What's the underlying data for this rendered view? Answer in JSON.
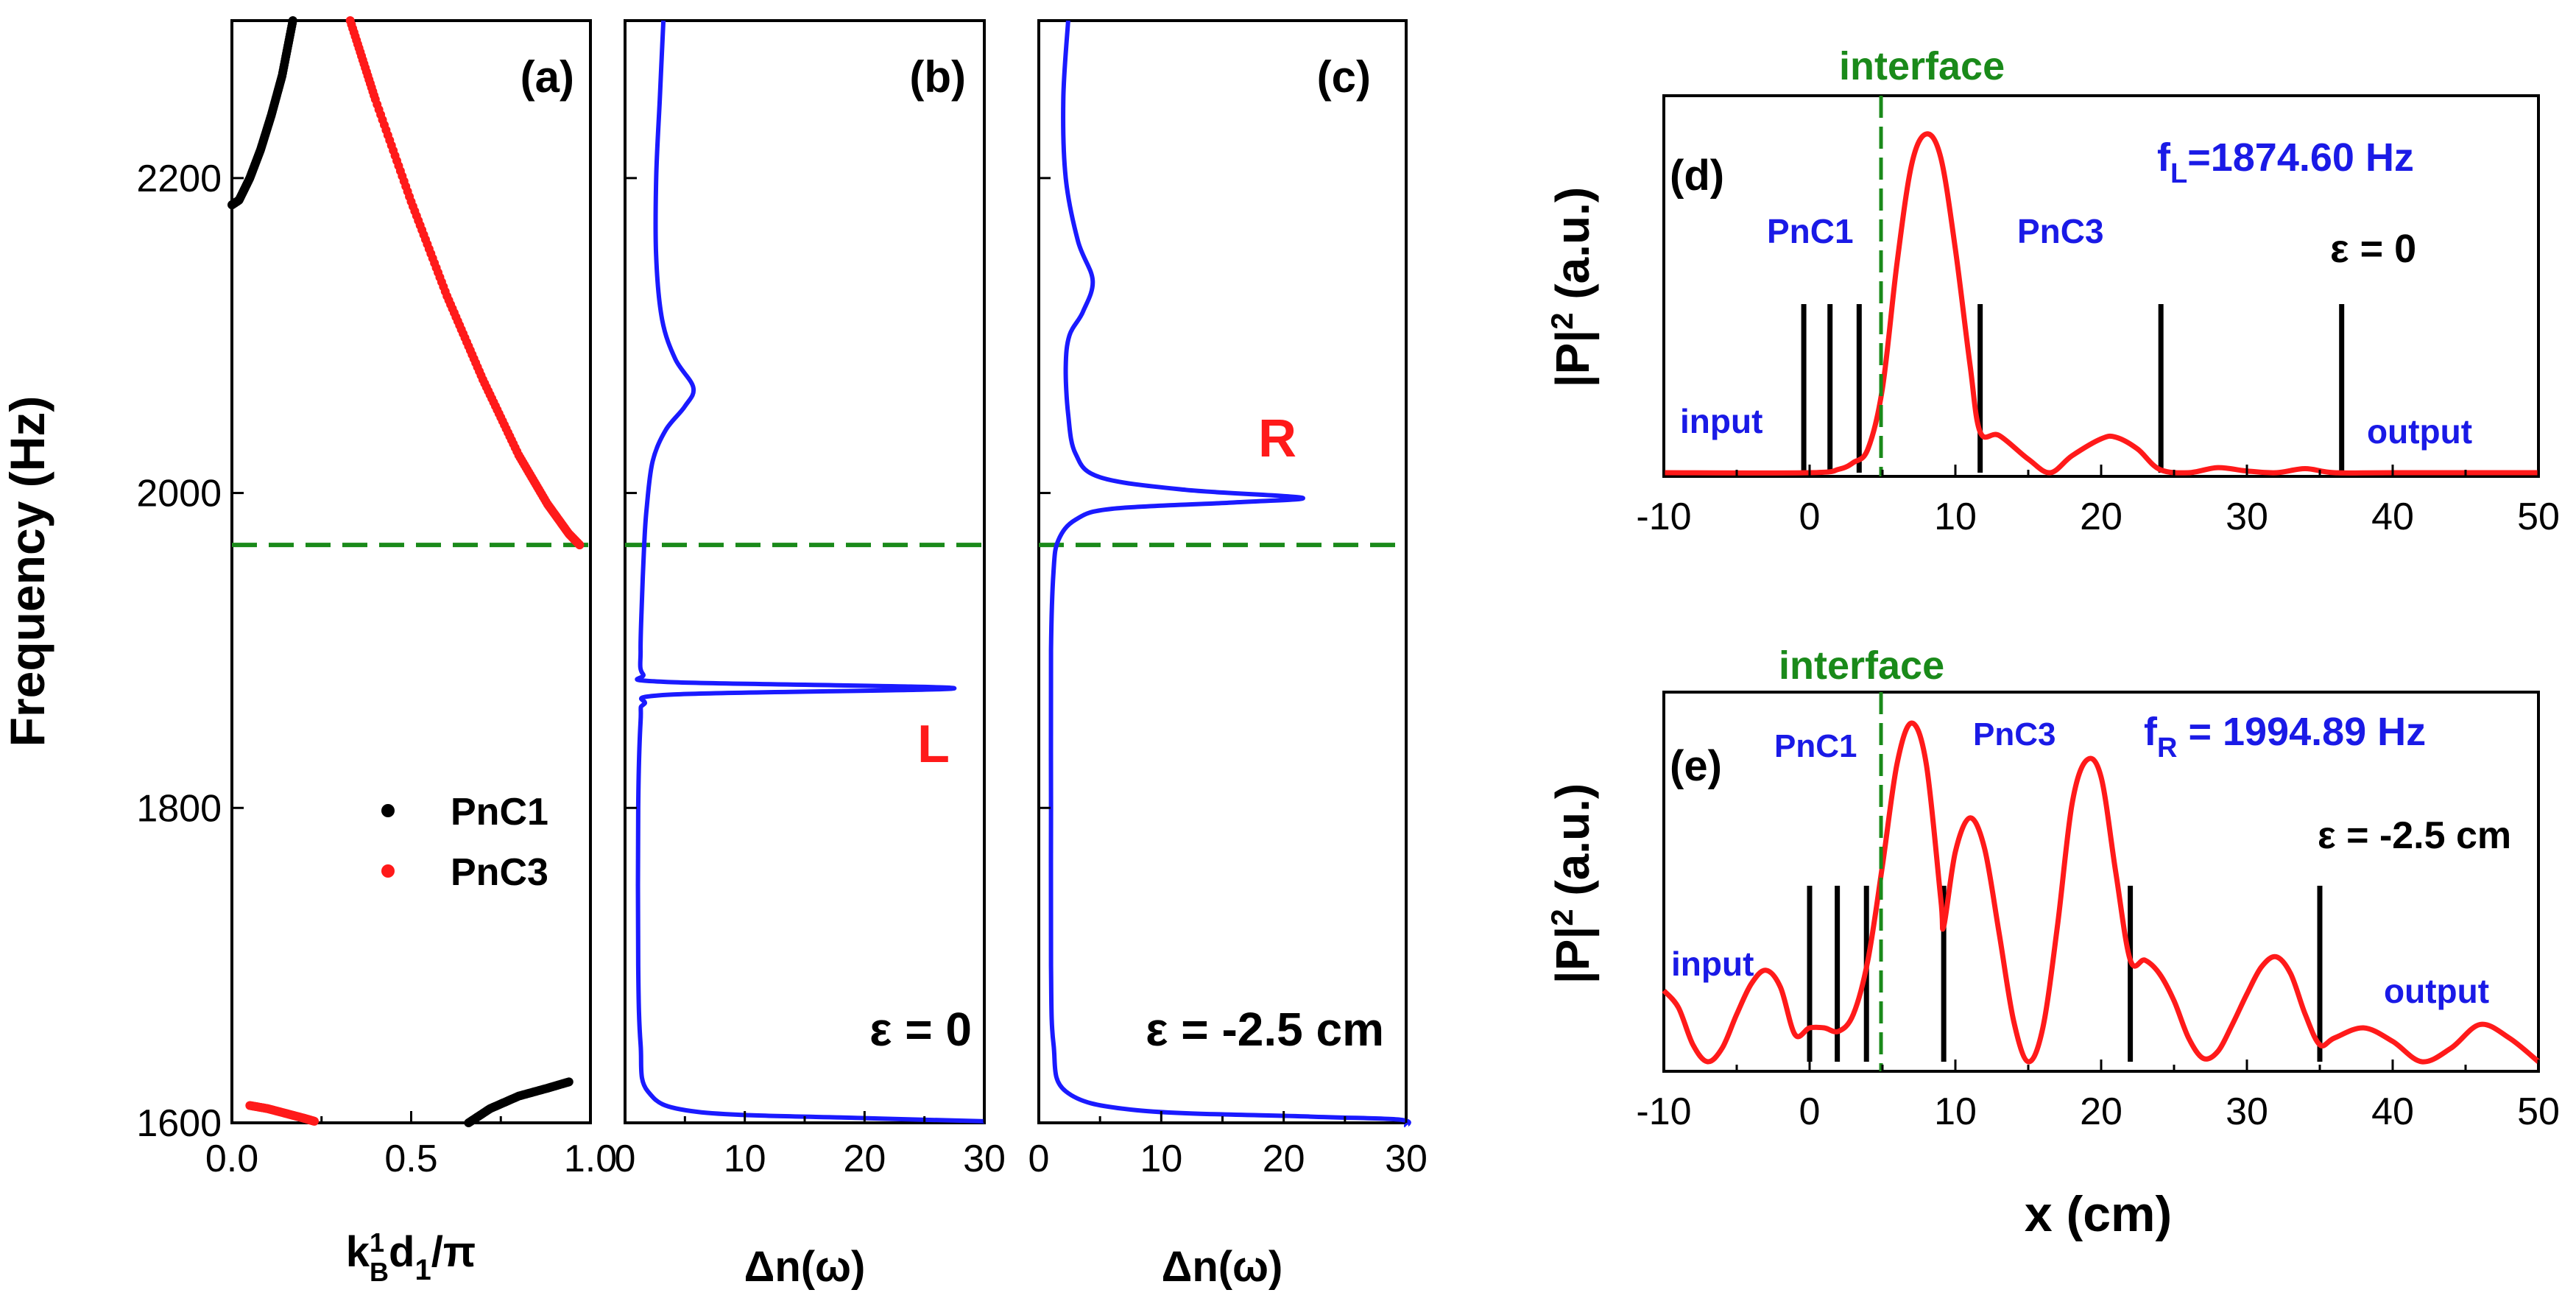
{
  "colors": {
    "black": "#000000",
    "red": "#ff1a1a",
    "blue": "#1a1aff",
    "green": "#1a8a1a",
    "textblue": "#1a1ae6"
  },
  "chart_data": [
    {
      "id": "a",
      "type": "scatter",
      "panel_label": "(a)",
      "ylabel": "Frequency (Hz)",
      "xlabel": "k¹_B d₁/π",
      "xlabel_main": "k",
      "xlabel_sup": "1",
      "xlabel_sub": "B",
      "xlabel_rest": "d",
      "xlabel_sub2": "1",
      "xlabel_tail": "/π",
      "xlim": [
        0,
        1
      ],
      "ylim": [
        1600,
        2300
      ],
      "xticks": [
        "0.0",
        "0.5",
        "1.0"
      ],
      "xtick_values": [
        0,
        0.5,
        1.0
      ],
      "yticks": [
        "1600",
        "1800",
        "2000",
        "2200"
      ],
      "ytick_values": [
        1600,
        1800,
        2000,
        2200
      ],
      "hline": 1967,
      "legend": [
        {
          "name": "PnC1",
          "color": "#000000"
        },
        {
          "name": "PnC3",
          "color": "#ff1a1a"
        }
      ],
      "series": [
        {
          "name": "PnC1",
          "color": "#000000",
          "points": [
            [
              0.0,
              2183
            ],
            [
              0.02,
              2186
            ],
            [
              0.05,
              2200
            ],
            [
              0.08,
              2218
            ],
            [
              0.11,
              2240
            ],
            [
              0.14,
              2265
            ],
            [
              0.17,
              2300
            ]
          ]
        },
        {
          "name": "PnC1",
          "color": "#000000",
          "points": [
            [
              0.66,
              1600
            ],
            [
              0.72,
              1609
            ],
            [
              0.8,
              1617
            ],
            [
              0.88,
              1622
            ],
            [
              0.94,
              1626
            ]
          ]
        },
        {
          "name": "PnC3",
          "color": "#ff1a1a",
          "points": [
            [
              0.33,
              2300
            ],
            [
              0.4,
              2250
            ],
            [
              0.5,
              2185
            ],
            [
              0.6,
              2125
            ],
            [
              0.7,
              2072
            ],
            [
              0.8,
              2024
            ],
            [
              0.88,
              1993
            ],
            [
              0.94,
              1974
            ],
            [
              0.97,
              1967
            ]
          ]
        },
        {
          "name": "PnC3",
          "color": "#ff1a1a",
          "points": [
            [
              0.05,
              1611
            ],
            [
              0.1,
              1609
            ],
            [
              0.15,
              1606
            ],
            [
              0.2,
              1603
            ],
            [
              0.23,
              1601
            ]
          ]
        }
      ]
    },
    {
      "id": "b",
      "type": "line",
      "panel_label": "(b)",
      "xlabel": "Δn(ω)",
      "xlim": [
        0,
        30
      ],
      "ylim": [
        1600,
        2300
      ],
      "xticks": [
        "0",
        "10",
        "20",
        "30"
      ],
      "xtick_values": [
        0,
        10,
        20,
        30
      ],
      "hline": 1967,
      "annotation": "L",
      "annotation_x": 20,
      "annotation_y": 1840,
      "epsilon_label": "ε = 0",
      "series": [
        {
          "name": "Δn(ω)",
          "color": "#1a1aff",
          "points": [
            [
              3.2,
              2300
            ],
            [
              2.9,
              2250
            ],
            [
              2.6,
              2200
            ],
            [
              2.6,
              2150
            ],
            [
              3.1,
              2110
            ],
            [
              4.2,
              2085
            ],
            [
              5.7,
              2067
            ],
            [
              5.0,
              2055
            ],
            [
              3.4,
              2040
            ],
            [
              2.3,
              2020
            ],
            [
              1.8,
              1990
            ],
            [
              1.6,
              1967
            ],
            [
              1.4,
              1930
            ],
            [
              1.3,
              1900
            ],
            [
              1.5,
              1885
            ],
            [
              3.5,
              1880
            ],
            [
              27.5,
              1876
            ],
            [
              4.0,
              1872
            ],
            [
              1.6,
              1866
            ],
            [
              1.3,
              1855
            ],
            [
              1.1,
              1800
            ],
            [
              1.1,
              1700
            ],
            [
              1.3,
              1650
            ],
            [
              1.9,
              1620
            ],
            [
              6.0,
              1607
            ],
            [
              20.0,
              1603
            ],
            [
              30.0,
              1601
            ]
          ]
        }
      ]
    },
    {
      "id": "c",
      "type": "line",
      "panel_label": "(c)",
      "xlabel": "Δn(ω)",
      "xlim": [
        0,
        30
      ],
      "ylim": [
        1600,
        2300
      ],
      "xticks": [
        "0",
        "10",
        "20",
        "30"
      ],
      "xtick_values": [
        0,
        10,
        20,
        30
      ],
      "hline": 1967,
      "annotation": "R",
      "annotation_x": 18,
      "annotation_y": 2030,
      "epsilon_label": "ε = -2.5 cm",
      "series": [
        {
          "name": "Δn(ω)",
          "color": "#1a1aff",
          "points": [
            [
              2.4,
              2300
            ],
            [
              2.0,
              2250
            ],
            [
              2.2,
              2200
            ],
            [
              3.2,
              2160
            ],
            [
              4.4,
              2135
            ],
            [
              3.6,
              2115
            ],
            [
              2.5,
              2100
            ],
            [
              2.2,
              2080
            ],
            [
              2.4,
              2050
            ],
            [
              3.0,
              2025
            ],
            [
              5.0,
              2010
            ],
            [
              12.0,
              2002
            ],
            [
              21.5,
              1997
            ],
            [
              16.0,
              1994
            ],
            [
              6.0,
              1990
            ],
            [
              3.0,
              1983
            ],
            [
              1.6,
              1970
            ],
            [
              1.2,
              1950
            ],
            [
              1.0,
              1900
            ],
            [
              1.0,
              1800
            ],
            [
              1.0,
              1700
            ],
            [
              1.2,
              1650
            ],
            [
              2.2,
              1620
            ],
            [
              8.0,
              1608
            ],
            [
              22.0,
              1604
            ],
            [
              29.5,
              1602
            ],
            [
              30.0,
              1598
            ]
          ]
        }
      ]
    },
    {
      "id": "d",
      "type": "line",
      "panel_label": "(d)",
      "ylabel": "|P|² (a.u.)",
      "ylabel_main": "|P|",
      "ylabel_sup": "2",
      "ylabel_rest": " (a.u.)",
      "xlim": [
        -10,
        50
      ],
      "xticks": [
        "-10",
        "0",
        "10",
        "20",
        "30",
        "40",
        "50"
      ],
      "xtick_values": [
        -10,
        0,
        10,
        20,
        30,
        40,
        50
      ],
      "interface_label": "interface",
      "interface_x": 4.9,
      "freq_label_main": "f",
      "freq_label_sub": "L",
      "freq_label_rest": "=1874.60 Hz",
      "epsilon_label": "ε = 0",
      "label_pnc1": "PnC1",
      "label_pnc3": "PnC3",
      "label_input": "input",
      "label_output": "output",
      "walls": [
        -0.4,
        1.4,
        3.4,
        11.7,
        24.1,
        36.5
      ],
      "series": [
        {
          "name": "|P|^2",
          "color": "#ff1a1a",
          "points": [
            [
              -10,
              0.0
            ],
            [
              0,
              0.0
            ],
            [
              2,
              0.01
            ],
            [
              3,
              0.03
            ],
            [
              4,
              0.07
            ],
            [
              5,
              0.25
            ],
            [
              6,
              0.62
            ],
            [
              7,
              0.91
            ],
            [
              8,
              1.0
            ],
            [
              9,
              0.93
            ],
            [
              10,
              0.66
            ],
            [
              11,
              0.32
            ],
            [
              11.7,
              0.12
            ],
            [
              13,
              0.11
            ],
            [
              15,
              0.04
            ],
            [
              16.5,
              0.0
            ],
            [
              18,
              0.05
            ],
            [
              20,
              0.1
            ],
            [
              21,
              0.105
            ],
            [
              22.5,
              0.07
            ],
            [
              24,
              0.01
            ],
            [
              26,
              0.0
            ],
            [
              28,
              0.015
            ],
            [
              30,
              0.005
            ],
            [
              32,
              0.0
            ],
            [
              34,
              0.012
            ],
            [
              36,
              0.0
            ],
            [
              40,
              0.0
            ],
            [
              50,
              0.0
            ]
          ]
        }
      ]
    },
    {
      "id": "e",
      "type": "line",
      "panel_label": "(e)",
      "ylabel": "|P|² (a.u.)",
      "ylabel_main": "|P|",
      "ylabel_sup": "2",
      "ylabel_rest": " (a.u.)",
      "xlabel": "x (cm)",
      "xlim": [
        -10,
        50
      ],
      "xticks": [
        "-10",
        "0",
        "10",
        "20",
        "30",
        "40",
        "50"
      ],
      "xtick_values": [
        -10,
        0,
        10,
        20,
        30,
        40,
        50
      ],
      "interface_label": "interface",
      "interface_x": 4.9,
      "freq_label_main": "f",
      "freq_label_sub": "R",
      "freq_label_rest": " = 1994.89 Hz",
      "epsilon_label": "ε = -2.5 cm",
      "label_pnc1": "PnC1",
      "label_pnc3": "PnC3",
      "label_input": "input",
      "label_output": "output",
      "walls": [
        0.0,
        1.9,
        3.9,
        9.2,
        22.0,
        35.0
      ],
      "series": [
        {
          "name": "|P|^2",
          "color": "#ff1a1a",
          "points": [
            [
              -10,
              0.21
            ],
            [
              -9,
              0.16
            ],
            [
              -8,
              0.05
            ],
            [
              -7,
              0.0
            ],
            [
              -6,
              0.04
            ],
            [
              -5,
              0.14
            ],
            [
              -4,
              0.23
            ],
            [
              -3,
              0.27
            ],
            [
              -2,
              0.22
            ],
            [
              -1,
              0.08
            ],
            [
              0,
              0.1
            ],
            [
              1,
              0.1
            ],
            [
              2,
              0.09
            ],
            [
              3,
              0.14
            ],
            [
              4,
              0.3
            ],
            [
              5,
              0.58
            ],
            [
              6,
              0.88
            ],
            [
              7,
              1.0
            ],
            [
              8,
              0.88
            ],
            [
              9,
              0.48
            ],
            [
              9.2,
              0.4
            ],
            [
              10,
              0.62
            ],
            [
              11,
              0.72
            ],
            [
              12,
              0.63
            ],
            [
              13,
              0.38
            ],
            [
              14,
              0.12
            ],
            [
              15,
              0.0
            ],
            [
              16,
              0.1
            ],
            [
              17,
              0.4
            ],
            [
              18,
              0.76
            ],
            [
              19,
              0.89
            ],
            [
              20,
              0.84
            ],
            [
              21,
              0.56
            ],
            [
              22,
              0.3
            ],
            [
              23,
              0.3
            ],
            [
              24,
              0.26
            ],
            [
              25,
              0.18
            ],
            [
              26,
              0.07
            ],
            [
              27,
              0.01
            ],
            [
              28,
              0.03
            ],
            [
              29,
              0.11
            ],
            [
              30,
              0.2
            ],
            [
              31,
              0.28
            ],
            [
              32,
              0.31
            ],
            [
              33,
              0.26
            ],
            [
              34,
              0.14
            ],
            [
              35,
              0.05
            ],
            [
              36,
              0.07
            ],
            [
              38,
              0.1
            ],
            [
              40,
              0.06
            ],
            [
              42,
              0.0
            ],
            [
              44,
              0.04
            ],
            [
              46,
              0.11
            ],
            [
              48,
              0.07
            ],
            [
              50,
              0.0
            ]
          ]
        }
      ]
    }
  ]
}
